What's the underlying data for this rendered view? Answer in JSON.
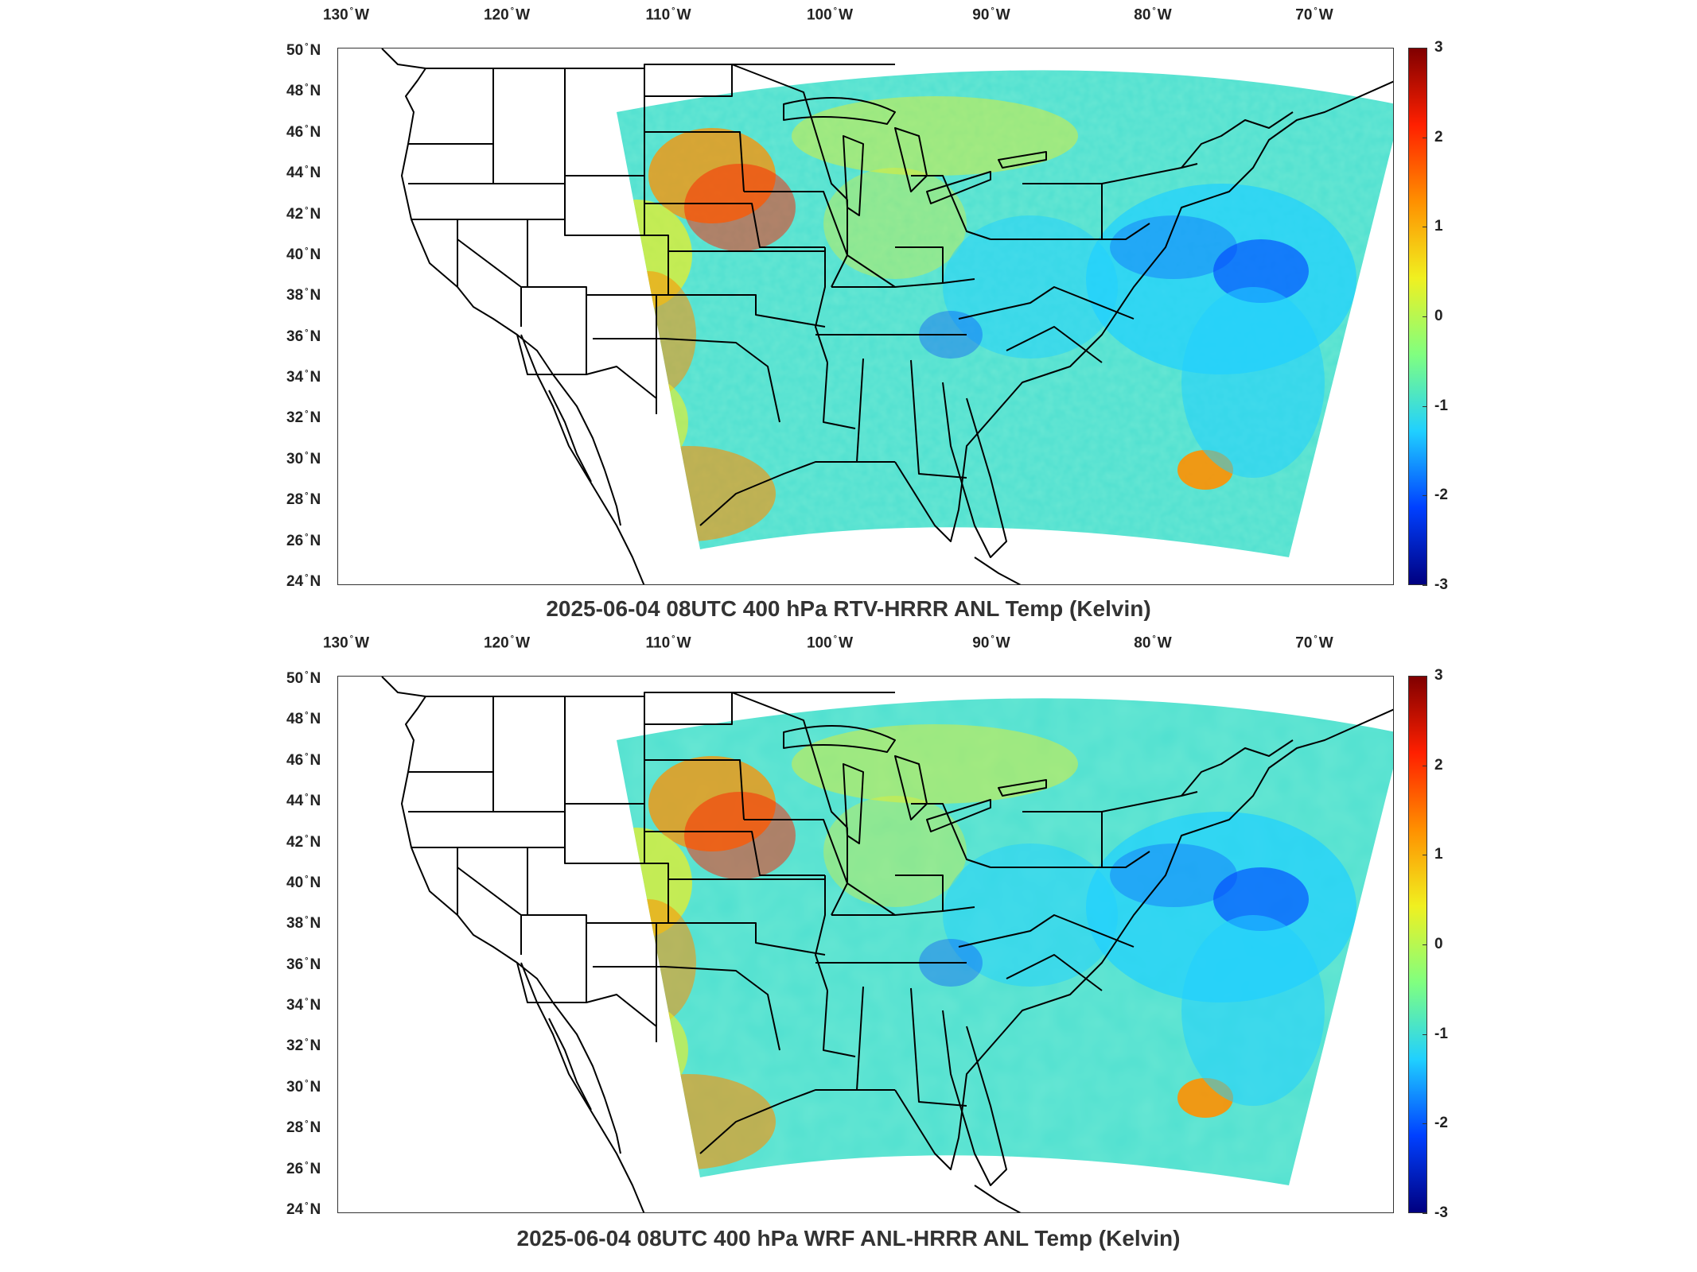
{
  "panels": [
    {
      "title": "2025-06-04 08UTC 400 hPa RTV-HRRR ANL Temp (Kelvin)",
      "lon_ticks": [
        {
          "deg": "130",
          "hem": "W"
        },
        {
          "deg": "120",
          "hem": "W"
        },
        {
          "deg": "110",
          "hem": "W"
        },
        {
          "deg": "100",
          "hem": "W"
        },
        {
          "deg": "90",
          "hem": "W"
        },
        {
          "deg": "80",
          "hem": "W"
        },
        {
          "deg": "70",
          "hem": "W"
        }
      ],
      "lat_ticks": [
        {
          "deg": "50",
          "hem": "N"
        },
        {
          "deg": "48",
          "hem": "N"
        },
        {
          "deg": "46",
          "hem": "N"
        },
        {
          "deg": "44",
          "hem": "N"
        },
        {
          "deg": "42",
          "hem": "N"
        },
        {
          "deg": "40",
          "hem": "N"
        },
        {
          "deg": "38",
          "hem": "N"
        },
        {
          "deg": "36",
          "hem": "N"
        },
        {
          "deg": "34",
          "hem": "N"
        },
        {
          "deg": "32",
          "hem": "N"
        },
        {
          "deg": "30",
          "hem": "N"
        },
        {
          "deg": "28",
          "hem": "N"
        },
        {
          "deg": "26",
          "hem": "N"
        },
        {
          "deg": "24",
          "hem": "N"
        }
      ],
      "colorbar": {
        "ticks": [
          "3",
          "2",
          "1",
          "0",
          "-1",
          "-2",
          "-3"
        ],
        "min": -3,
        "max": 3,
        "colormap": "jet"
      }
    },
    {
      "title": "2025-06-04 08UTC 400 hPa WRF ANL-HRRR ANL Temp (Kelvin)",
      "lon_ticks": [
        {
          "deg": "130",
          "hem": "W"
        },
        {
          "deg": "120",
          "hem": "W"
        },
        {
          "deg": "110",
          "hem": "W"
        },
        {
          "deg": "100",
          "hem": "W"
        },
        {
          "deg": "90",
          "hem": "W"
        },
        {
          "deg": "80",
          "hem": "W"
        },
        {
          "deg": "70",
          "hem": "W"
        }
      ],
      "lat_ticks": [
        {
          "deg": "50",
          "hem": "N"
        },
        {
          "deg": "48",
          "hem": "N"
        },
        {
          "deg": "46",
          "hem": "N"
        },
        {
          "deg": "44",
          "hem": "N"
        },
        {
          "deg": "42",
          "hem": "N"
        },
        {
          "deg": "40",
          "hem": "N"
        },
        {
          "deg": "38",
          "hem": "N"
        },
        {
          "deg": "36",
          "hem": "N"
        },
        {
          "deg": "34",
          "hem": "N"
        },
        {
          "deg": "32",
          "hem": "N"
        },
        {
          "deg": "30",
          "hem": "N"
        },
        {
          "deg": "28",
          "hem": "N"
        },
        {
          "deg": "26",
          "hem": "N"
        },
        {
          "deg": "24",
          "hem": "N"
        }
      ],
      "colorbar": {
        "ticks": [
          "3",
          "2",
          "1",
          "0",
          "-1",
          "-2",
          "-3"
        ],
        "min": -3,
        "max": 3,
        "colormap": "jet"
      }
    }
  ],
  "colors": {
    "jet_top": "#800000",
    "jet_red": "#ff2000",
    "jet_orange": "#ff9000",
    "jet_yellow": "#f0f020",
    "jet_green": "#80ff80",
    "jet_cyan": "#20d0ff",
    "jet_blue": "#0040ff",
    "jet_bottom": "#000080",
    "field_base": "#4fe0d0",
    "boundary": "#000000"
  }
}
